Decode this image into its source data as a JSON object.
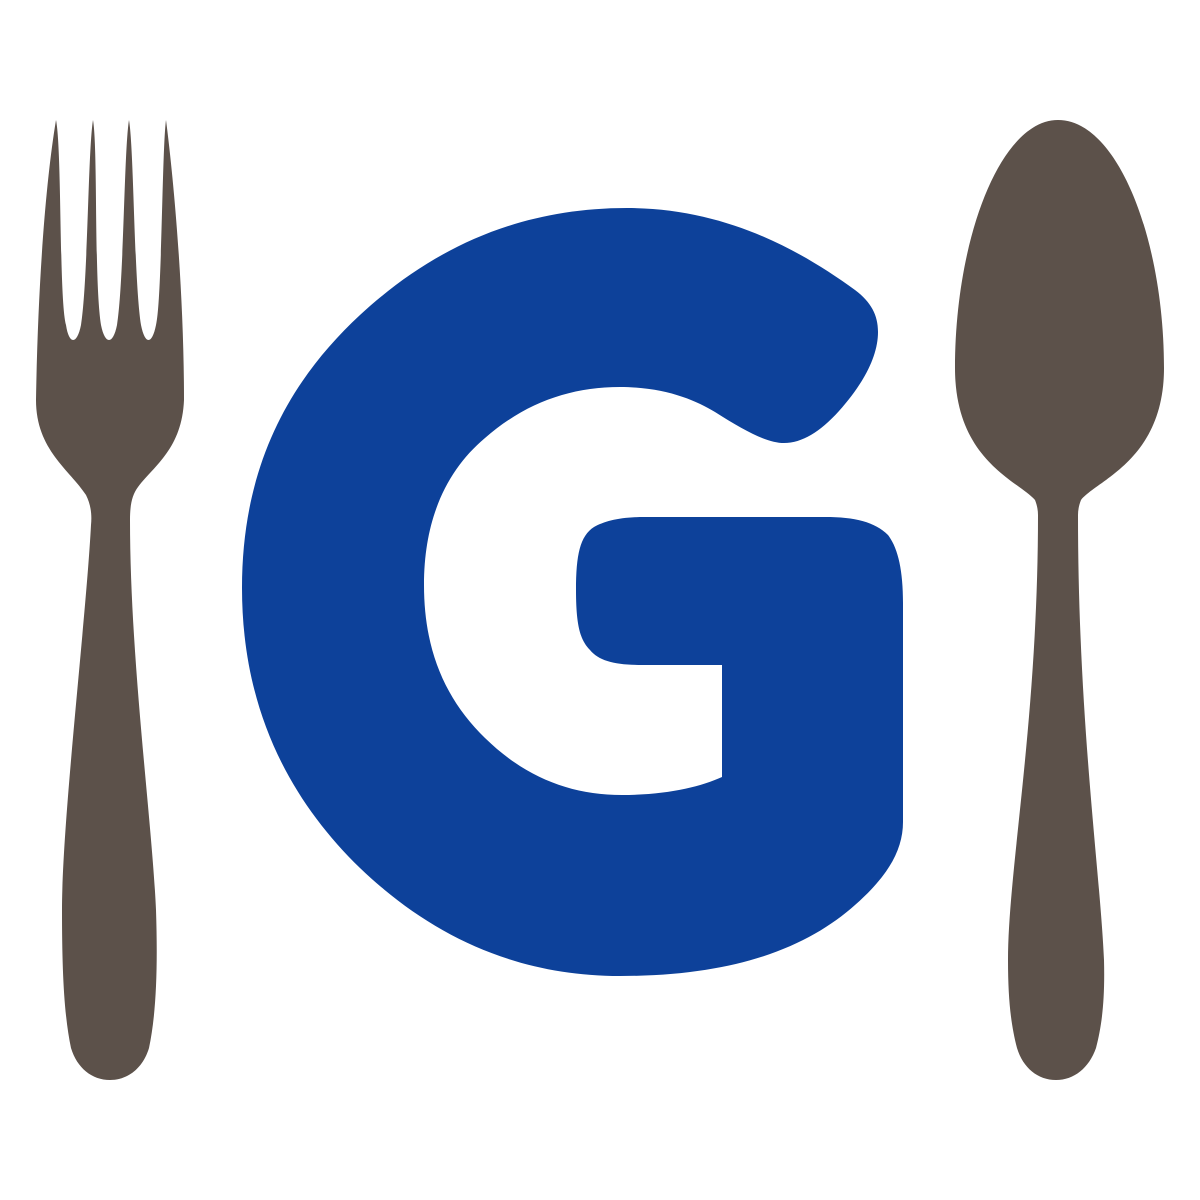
{
  "logo": {
    "letter": "G",
    "colors": {
      "background": "#ffffff",
      "letter": "#0d419a",
      "utensils": "#5c514a"
    },
    "icons": {
      "left": "fork-icon",
      "right": "spoon-icon"
    }
  }
}
